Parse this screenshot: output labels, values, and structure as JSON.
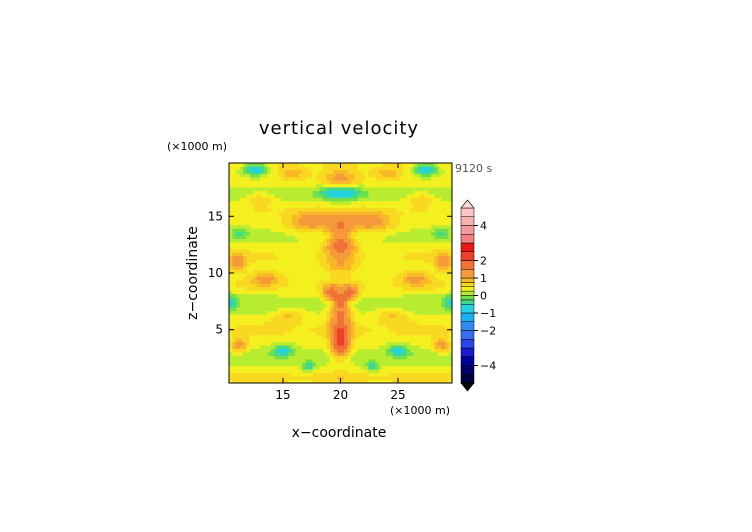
{
  "chart_data": {
    "type": "heatmap",
    "title": "vertical velocity",
    "xlabel": "x−coordinate",
    "ylabel": "z−coordinate",
    "x_unit": "(×1000 m)",
    "y_unit": "(×1000 m)",
    "time_label": "9120 s",
    "xlim": [
      10.3,
      29.7
    ],
    "ylim": [
      0.3,
      19.7
    ],
    "x_ticks": [
      15,
      20,
      25
    ],
    "y_ticks": [
      5,
      10,
      15
    ],
    "x_tick_labels": [
      "15",
      "20",
      "25"
    ],
    "y_tick_labels": [
      "5",
      "10",
      "15"
    ],
    "colorbar": {
      "range": [
        -5,
        5
      ],
      "tick_values": [
        4,
        2,
        1,
        0,
        -1,
        -2,
        -4
      ],
      "tick_labels": [
        "4",
        "2",
        "1",
        "0",
        "−1",
        "−2",
        "−4"
      ],
      "extend": "both",
      "levels": [
        {
          "lo": -5.0,
          "hi": -4.5,
          "color": "#00003a"
        },
        {
          "lo": -4.5,
          "hi": -4.0,
          "color": "#000066"
        },
        {
          "lo": -4.0,
          "hi": -3.5,
          "color": "#00009a"
        },
        {
          "lo": -3.5,
          "hi": -3.0,
          "color": "#1a1acc"
        },
        {
          "lo": -3.0,
          "hi": -2.5,
          "color": "#2a44e6"
        },
        {
          "lo": -2.5,
          "hi": -2.0,
          "color": "#3a6cf0"
        },
        {
          "lo": -2.0,
          "hi": -1.5,
          "color": "#2f8cf5"
        },
        {
          "lo": -1.5,
          "hi": -1.0,
          "color": "#1ab0f5"
        },
        {
          "lo": -1.0,
          "hi": -0.5,
          "color": "#22d2e0"
        },
        {
          "lo": -0.5,
          "hi": -0.25,
          "color": "#40d890"
        },
        {
          "lo": -0.25,
          "hi": 0.0,
          "color": "#6fe04a"
        },
        {
          "lo": 0.0,
          "hi": 0.25,
          "color": "#b8ec30"
        },
        {
          "lo": 0.25,
          "hi": 0.5,
          "color": "#f4f020"
        },
        {
          "lo": 0.5,
          "hi": 0.75,
          "color": "#f8d820"
        },
        {
          "lo": 0.75,
          "hi": 1.0,
          "color": "#f9b828"
        },
        {
          "lo": 1.0,
          "hi": 1.5,
          "color": "#f49a3a"
        },
        {
          "lo": 1.5,
          "hi": 2.0,
          "color": "#f07236"
        },
        {
          "lo": 2.0,
          "hi": 2.5,
          "color": "#ee4028"
        },
        {
          "lo": 2.5,
          "hi": 3.0,
          "color": "#e81818"
        },
        {
          "lo": 3.0,
          "hi": 3.5,
          "color": "#f08080"
        },
        {
          "lo": 3.5,
          "hi": 4.0,
          "color": "#f49a9a"
        },
        {
          "lo": 4.0,
          "hi": 4.5,
          "color": "#f8b0b0"
        },
        {
          "lo": 4.5,
          "hi": 5.0,
          "color": "#fcc6c6"
        }
      ],
      "under_color": "#000000",
      "over_color": "#fcd8d8"
    },
    "features": [
      {
        "x": 20.0,
        "z": 4.0,
        "sx": 0.8,
        "sz": 1.4,
        "w": 2.0
      },
      {
        "x": 20.0,
        "z": 6.5,
        "sx": 0.9,
        "sz": 1.2,
        "w": 1.4
      },
      {
        "x": 19.2,
        "z": 8.3,
        "sx": 0.7,
        "sz": 0.6,
        "w": 1.5
      },
      {
        "x": 20.8,
        "z": 8.3,
        "sx": 0.7,
        "sz": 0.6,
        "w": 1.5
      },
      {
        "x": 20.0,
        "z": 7.6,
        "sx": 0.5,
        "sz": 0.5,
        "w": 1.2
      },
      {
        "x": 20.0,
        "z": 12.5,
        "sx": 1.2,
        "sz": 1.0,
        "w": 1.5
      },
      {
        "x": 20.0,
        "z": 10.6,
        "sx": 1.3,
        "sz": 0.7,
        "w": 0.6
      },
      {
        "x": 17.5,
        "z": 14.6,
        "sx": 2.0,
        "sz": 0.9,
        "w": 1.0
      },
      {
        "x": 22.5,
        "z": 14.6,
        "sx": 2.0,
        "sz": 0.9,
        "w": 1.0
      },
      {
        "x": 20.0,
        "z": 14.2,
        "sx": 1.0,
        "sz": 0.8,
        "w": 0.9
      },
      {
        "x": 20.0,
        "z": 18.3,
        "sx": 1.6,
        "sz": 0.8,
        "w": 0.9
      },
      {
        "x": 15.8,
        "z": 18.8,
        "sx": 1.4,
        "sz": 0.6,
        "w": 0.6
      },
      {
        "x": 24.2,
        "z": 18.8,
        "sx": 1.4,
        "sz": 0.6,
        "w": 0.6
      },
      {
        "x": 20.0,
        "z": 17.2,
        "sx": 1.8,
        "sz": 0.6,
        "w": -1.1
      },
      {
        "x": 12.6,
        "z": 19.2,
        "sx": 1.0,
        "sz": 0.5,
        "w": -1.2
      },
      {
        "x": 27.4,
        "z": 19.2,
        "sx": 1.0,
        "sz": 0.5,
        "w": -1.2
      },
      {
        "x": 15.0,
        "z": 3.2,
        "sx": 0.9,
        "sz": 0.5,
        "w": -1.0
      },
      {
        "x": 25.0,
        "z": 3.2,
        "sx": 0.9,
        "sz": 0.5,
        "w": -1.0
      },
      {
        "x": 17.2,
        "z": 1.8,
        "sx": 0.6,
        "sz": 0.5,
        "w": -0.7
      },
      {
        "x": 22.8,
        "z": 1.8,
        "sx": 0.6,
        "sz": 0.5,
        "w": -0.7
      },
      {
        "x": 10.5,
        "z": 7.5,
        "sx": 0.5,
        "sz": 0.6,
        "w": -0.8
      },
      {
        "x": 29.5,
        "z": 7.5,
        "sx": 0.5,
        "sz": 0.6,
        "w": -0.8
      },
      {
        "x": 11.2,
        "z": 13.5,
        "sx": 0.7,
        "sz": 0.5,
        "w": -0.6
      },
      {
        "x": 28.8,
        "z": 13.5,
        "sx": 0.7,
        "sz": 0.5,
        "w": -0.6
      },
      {
        "x": 13.5,
        "z": 9.6,
        "sx": 1.3,
        "sz": 0.6,
        "w": 0.7
      },
      {
        "x": 26.5,
        "z": 9.6,
        "sx": 1.3,
        "sz": 0.6,
        "w": 0.7
      },
      {
        "x": 11.0,
        "z": 11.0,
        "sx": 0.8,
        "sz": 0.8,
        "w": 0.9
      },
      {
        "x": 29.0,
        "z": 11.0,
        "sx": 0.8,
        "sz": 0.8,
        "w": 0.9
      },
      {
        "x": 11.2,
        "z": 3.6,
        "sx": 0.7,
        "sz": 0.6,
        "w": 0.8
      },
      {
        "x": 28.8,
        "z": 3.6,
        "sx": 0.7,
        "sz": 0.6,
        "w": 0.8
      },
      {
        "x": 15.5,
        "z": 6.2,
        "sx": 1.4,
        "sz": 0.6,
        "w": 0.5
      },
      {
        "x": 24.5,
        "z": 6.2,
        "sx": 1.4,
        "sz": 0.6,
        "w": 0.5
      },
      {
        "x": 13.0,
        "z": 16.6,
        "sx": 1.3,
        "sz": 0.5,
        "w": 0.6
      },
      {
        "x": 27.0,
        "z": 16.6,
        "sx": 1.3,
        "sz": 0.5,
        "w": 0.6
      }
    ],
    "bands": [
      {
        "z": 0.8,
        "amp": 0.45,
        "width": 0.6
      },
      {
        "z": 2.6,
        "amp": -0.25,
        "width": 0.7
      },
      {
        "z": 5.0,
        "amp": 0.35,
        "width": 0.8
      },
      {
        "z": 7.2,
        "amp": -0.25,
        "width": 0.9
      },
      {
        "z": 9.0,
        "amp": 0.3,
        "width": 0.7
      },
      {
        "z": 11.5,
        "amp": 0.25,
        "width": 0.8
      },
      {
        "z": 13.2,
        "amp": -0.2,
        "width": 0.6
      },
      {
        "z": 15.6,
        "amp": 0.2,
        "width": 0.7
      },
      {
        "z": 16.8,
        "amp": -0.3,
        "width": 0.6
      },
      {
        "z": 19.6,
        "amp": 0.2,
        "width": 0.5
      }
    ],
    "base_value": 0.3
  }
}
